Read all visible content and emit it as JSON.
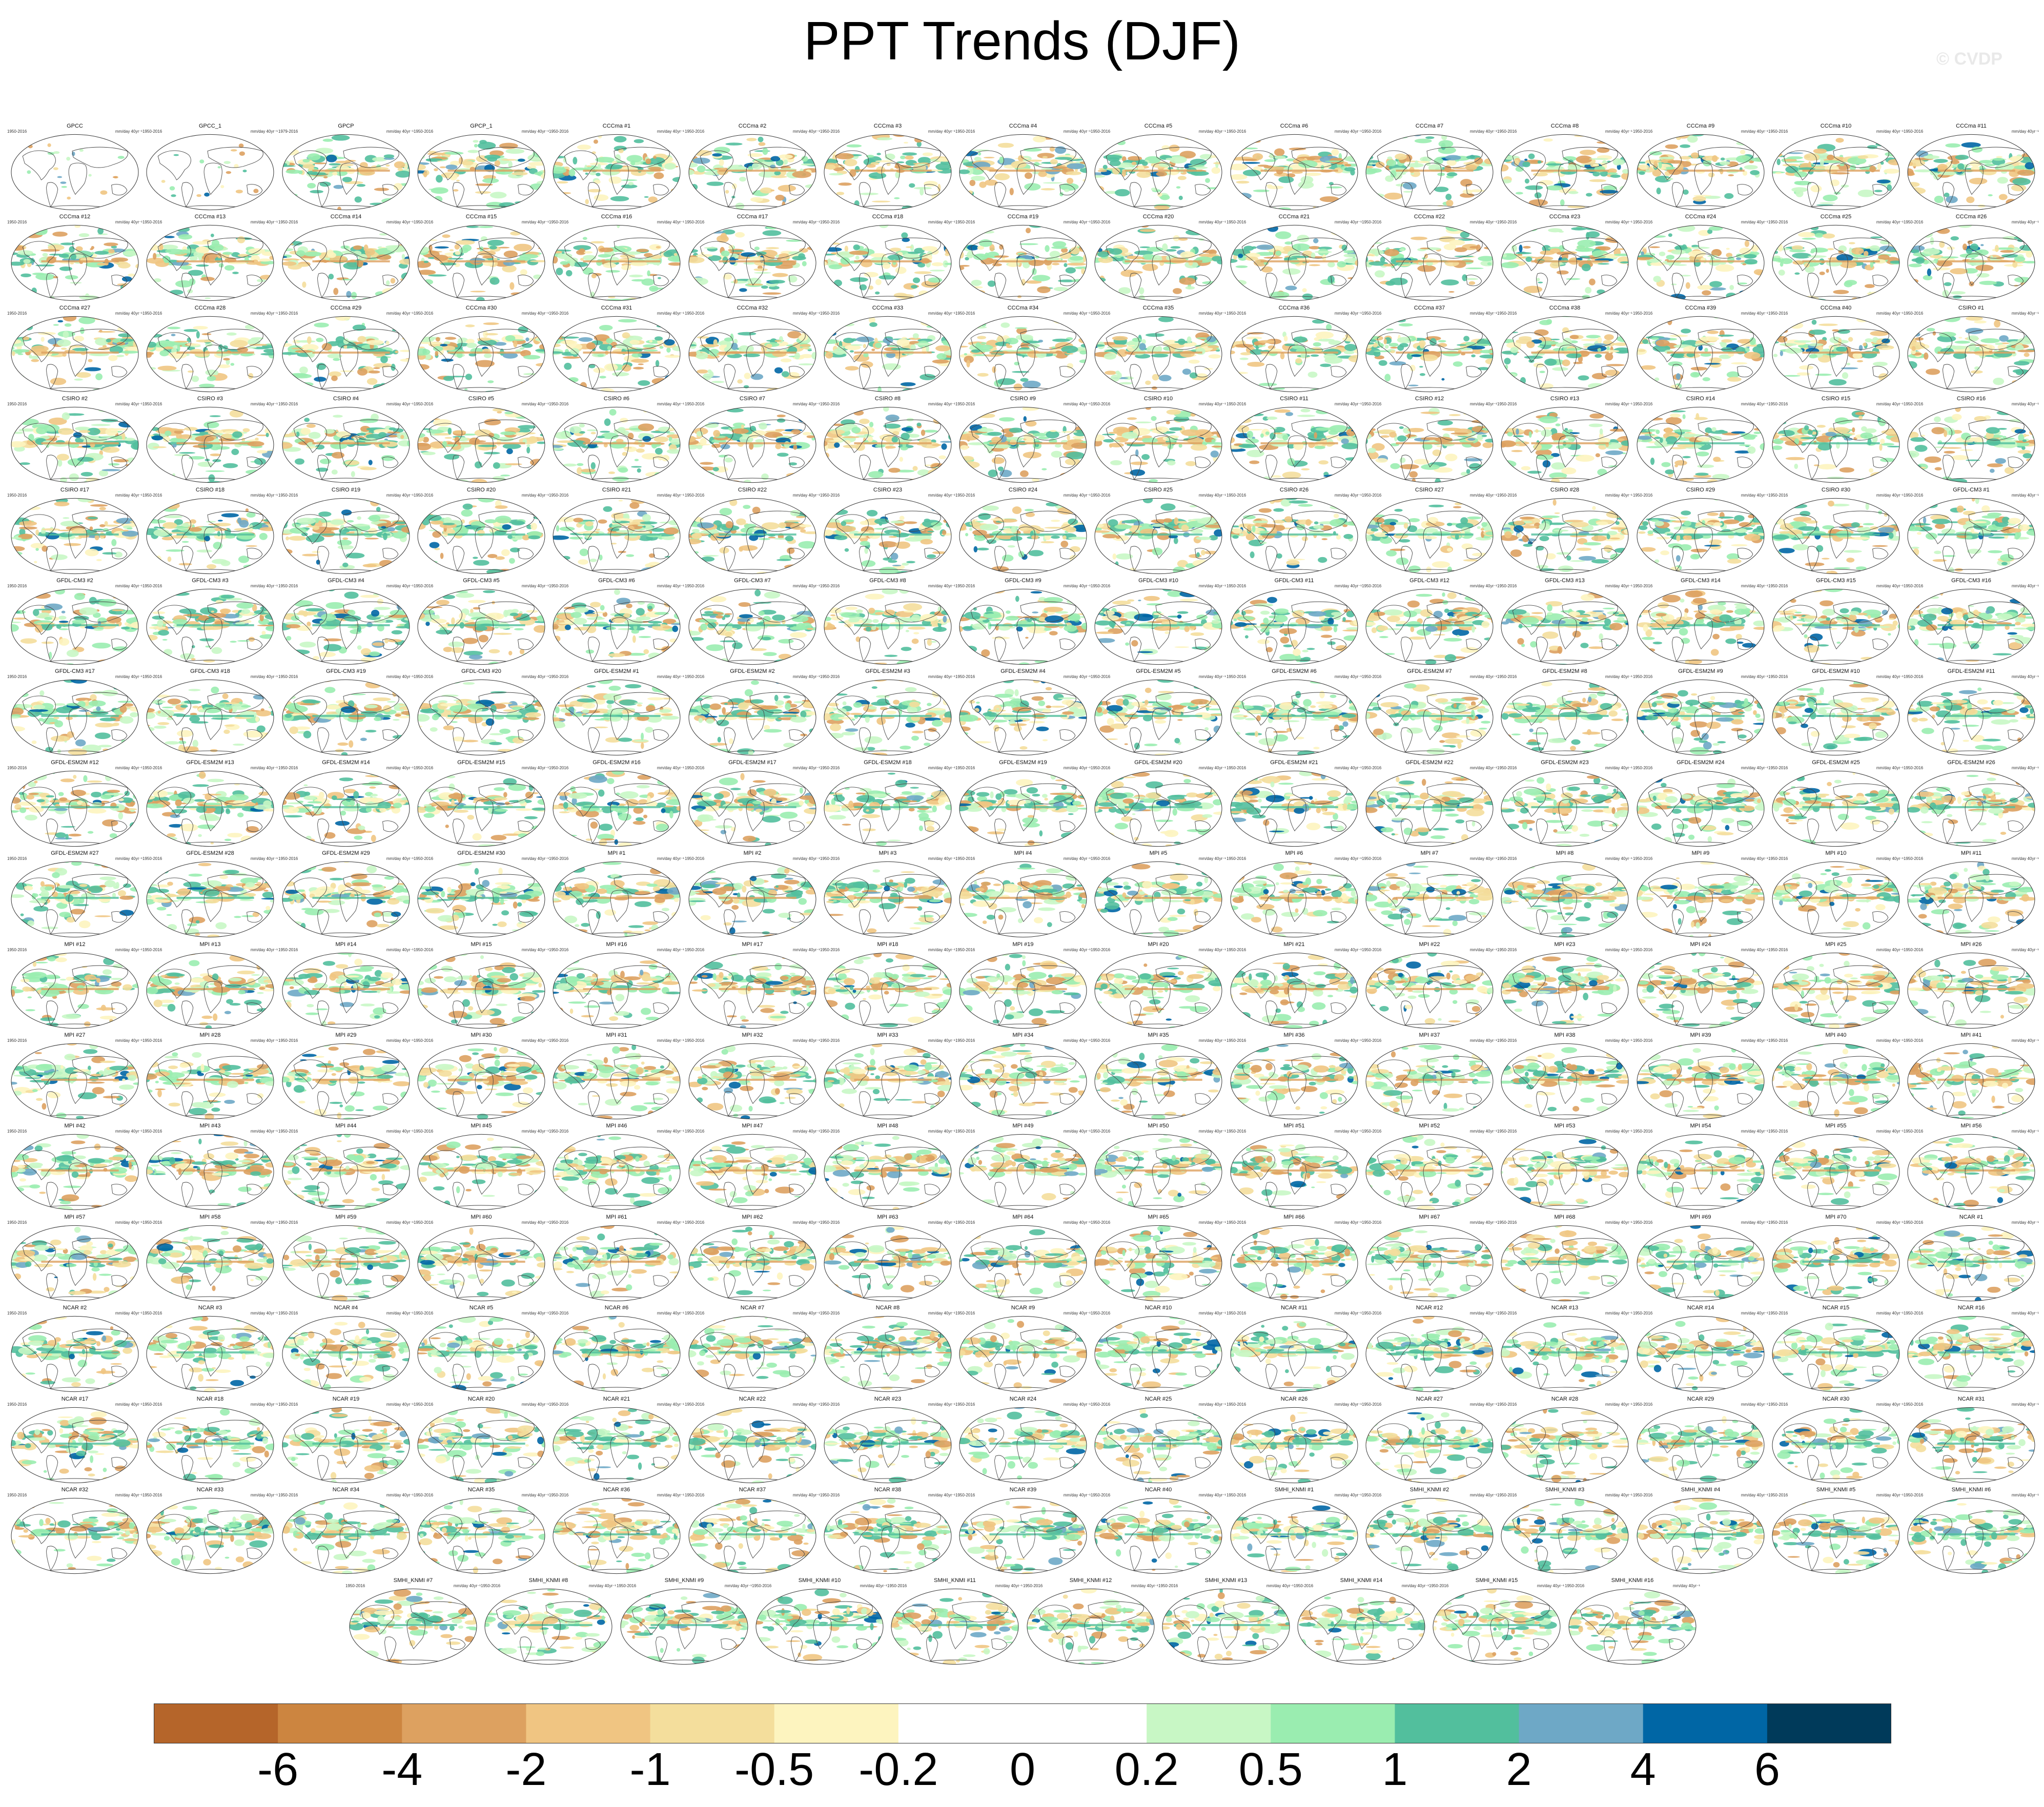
{
  "title": "PPT Trends (DJF)",
  "watermark": "© CVDP",
  "chart_data": {
    "type": "heatmap",
    "title": "PPT Trends (DJF)",
    "description_kind": "small-multiple global map panels of seasonal precipitation trend",
    "units": "mm/day 40yr⁻¹",
    "panels": [
      {
        "name": "GPCC",
        "period": "1950-2016"
      },
      {
        "name": "GPCC_1",
        "period": "1950-2016"
      },
      {
        "name": "GPCP",
        "period": "1979-2016"
      },
      {
        "name": "GPCP_1",
        "period": "1950-2016"
      },
      {
        "name": "CCCma #1",
        "period": "1950-2016"
      },
      {
        "name": "CCCma #2",
        "period": "1950-2016"
      },
      {
        "name": "CCCma #3",
        "period": "1950-2016"
      },
      {
        "name": "CCCma #4",
        "period": "1950-2016"
      },
      {
        "name": "CCCma #5",
        "period": "1950-2016"
      },
      {
        "name": "CCCma #6",
        "period": "1950-2016"
      },
      {
        "name": "CCCma #7",
        "period": "1950-2016"
      },
      {
        "name": "CCCma #8",
        "period": "1950-2016"
      },
      {
        "name": "CCCma #9",
        "period": "1950-2016"
      },
      {
        "name": "CCCma #10",
        "period": "1950-2016"
      },
      {
        "name": "CCCma #11",
        "period": "1950-2016"
      },
      {
        "name": "CCCma #12",
        "period": "1950-2016"
      },
      {
        "name": "CCCma #13",
        "period": "1950-2016"
      },
      {
        "name": "CCCma #14",
        "period": "1950-2016"
      },
      {
        "name": "CCCma #15",
        "period": "1950-2016"
      },
      {
        "name": "CCCma #16",
        "period": "1950-2016"
      },
      {
        "name": "CCCma #17",
        "period": "1950-2016"
      },
      {
        "name": "CCCma #18",
        "period": "1950-2016"
      },
      {
        "name": "CCCma #19",
        "period": "1950-2016"
      },
      {
        "name": "CCCma #20",
        "period": "1950-2016"
      },
      {
        "name": "CCCma #21",
        "period": "1950-2016"
      },
      {
        "name": "CCCma #22",
        "period": "1950-2016"
      },
      {
        "name": "CCCma #23",
        "period": "1950-2016"
      },
      {
        "name": "CCCma #24",
        "period": "1950-2016"
      },
      {
        "name": "CCCma #25",
        "period": "1950-2016"
      },
      {
        "name": "CCCma #26",
        "period": "1950-2016"
      },
      {
        "name": "CCCma #27",
        "period": "1950-2016"
      },
      {
        "name": "CCCma #28",
        "period": "1950-2016"
      },
      {
        "name": "CCCma #29",
        "period": "1950-2016"
      },
      {
        "name": "CCCma #30",
        "period": "1950-2016"
      },
      {
        "name": "CCCma #31",
        "period": "1950-2016"
      },
      {
        "name": "CCCma #32",
        "period": "1950-2016"
      },
      {
        "name": "CCCma #33",
        "period": "1950-2016"
      },
      {
        "name": "CCCma #34",
        "period": "1950-2016"
      },
      {
        "name": "CCCma #35",
        "period": "1950-2016"
      },
      {
        "name": "CCCma #36",
        "period": "1950-2016"
      },
      {
        "name": "CCCma #37",
        "period": "1950-2016"
      },
      {
        "name": "CCCma #38",
        "period": "1950-2016"
      },
      {
        "name": "CCCma #39",
        "period": "1950-2016"
      },
      {
        "name": "CCCma #40",
        "period": "1950-2016"
      },
      {
        "name": "CSIRO #1",
        "period": "1950-2016"
      },
      {
        "name": "CSIRO #2",
        "period": "1950-2016"
      },
      {
        "name": "CSIRO #3",
        "period": "1950-2016"
      },
      {
        "name": "CSIRO #4",
        "period": "1950-2016"
      },
      {
        "name": "CSIRO #5",
        "period": "1950-2016"
      },
      {
        "name": "CSIRO #6",
        "period": "1950-2016"
      },
      {
        "name": "CSIRO #7",
        "period": "1950-2016"
      },
      {
        "name": "CSIRO #8",
        "period": "1950-2016"
      },
      {
        "name": "CSIRO #9",
        "period": "1950-2016"
      },
      {
        "name": "CSIRO #10",
        "period": "1950-2016"
      },
      {
        "name": "CSIRO #11",
        "period": "1950-2016"
      },
      {
        "name": "CSIRO #12",
        "period": "1950-2016"
      },
      {
        "name": "CSIRO #13",
        "period": "1950-2016"
      },
      {
        "name": "CSIRO #14",
        "period": "1950-2016"
      },
      {
        "name": "CSIRO #15",
        "period": "1950-2016"
      },
      {
        "name": "CSIRO #16",
        "period": "1950-2016"
      },
      {
        "name": "CSIRO #17",
        "period": "1950-2016"
      },
      {
        "name": "CSIRO #18",
        "period": "1950-2016"
      },
      {
        "name": "CSIRO #19",
        "period": "1950-2016"
      },
      {
        "name": "CSIRO #20",
        "period": "1950-2016"
      },
      {
        "name": "CSIRO #21",
        "period": "1950-2016"
      },
      {
        "name": "CSIRO #22",
        "period": "1950-2016"
      },
      {
        "name": "CSIRO #23",
        "period": "1950-2016"
      },
      {
        "name": "CSIRO #24",
        "period": "1950-2016"
      },
      {
        "name": "CSIRO #25",
        "period": "1950-2016"
      },
      {
        "name": "CSIRO #26",
        "period": "1950-2016"
      },
      {
        "name": "CSIRO #27",
        "period": "1950-2016"
      },
      {
        "name": "CSIRO #28",
        "period": "1950-2016"
      },
      {
        "name": "CSIRO #29",
        "period": "1950-2016"
      },
      {
        "name": "CSIRO #30",
        "period": "1950-2016"
      },
      {
        "name": "GFDL-CM3 #1",
        "period": "1950-2016"
      },
      {
        "name": "GFDL-CM3 #2",
        "period": "1950-2016"
      },
      {
        "name": "GFDL-CM3 #3",
        "period": "1950-2016"
      },
      {
        "name": "GFDL-CM3 #4",
        "period": "1950-2016"
      },
      {
        "name": "GFDL-CM3 #5",
        "period": "1950-2016"
      },
      {
        "name": "GFDL-CM3 #6",
        "period": "1950-2016"
      },
      {
        "name": "GFDL-CM3 #7",
        "period": "1950-2016"
      },
      {
        "name": "GFDL-CM3 #8",
        "period": "1950-2016"
      },
      {
        "name": "GFDL-CM3 #9",
        "period": "1950-2016"
      },
      {
        "name": "GFDL-CM3 #10",
        "period": "1950-2016"
      },
      {
        "name": "GFDL-CM3 #11",
        "period": "1950-2016"
      },
      {
        "name": "GFDL-CM3 #12",
        "period": "1950-2016"
      },
      {
        "name": "GFDL-CM3 #13",
        "period": "1950-2016"
      },
      {
        "name": "GFDL-CM3 #14",
        "period": "1950-2016"
      },
      {
        "name": "GFDL-CM3 #15",
        "period": "1950-2016"
      },
      {
        "name": "GFDL-CM3 #16",
        "period": "1950-2016"
      },
      {
        "name": "GFDL-CM3 #17",
        "period": "1950-2016"
      },
      {
        "name": "GFDL-CM3 #18",
        "period": "1950-2016"
      },
      {
        "name": "GFDL-CM3 #19",
        "period": "1950-2016"
      },
      {
        "name": "GFDL-CM3 #20",
        "period": "1950-2016"
      },
      {
        "name": "GFDL-ESM2M #1",
        "period": "1950-2016"
      },
      {
        "name": "GFDL-ESM2M #2",
        "period": "1950-2016"
      },
      {
        "name": "GFDL-ESM2M #3",
        "period": "1950-2016"
      },
      {
        "name": "GFDL-ESM2M #4",
        "period": "1950-2016"
      },
      {
        "name": "GFDL-ESM2M #5",
        "period": "1950-2016"
      },
      {
        "name": "GFDL-ESM2M #6",
        "period": "1950-2016"
      },
      {
        "name": "GFDL-ESM2M #7",
        "period": "1950-2016"
      },
      {
        "name": "GFDL-ESM2M #8",
        "period": "1950-2016"
      },
      {
        "name": "GFDL-ESM2M #9",
        "period": "1950-2016"
      },
      {
        "name": "GFDL-ESM2M #10",
        "period": "1950-2016"
      },
      {
        "name": "GFDL-ESM2M #11",
        "period": "1950-2016"
      },
      {
        "name": "GFDL-ESM2M #12",
        "period": "1950-2016"
      },
      {
        "name": "GFDL-ESM2M #13",
        "period": "1950-2016"
      },
      {
        "name": "GFDL-ESM2M #14",
        "period": "1950-2016"
      },
      {
        "name": "GFDL-ESM2M #15",
        "period": "1950-2016"
      },
      {
        "name": "GFDL-ESM2M #16",
        "period": "1950-2016"
      },
      {
        "name": "GFDL-ESM2M #17",
        "period": "1950-2016"
      },
      {
        "name": "GFDL-ESM2M #18",
        "period": "1950-2016"
      },
      {
        "name": "GFDL-ESM2M #19",
        "period": "1950-2016"
      },
      {
        "name": "GFDL-ESM2M #20",
        "period": "1950-2016"
      },
      {
        "name": "GFDL-ESM2M #21",
        "period": "1950-2016"
      },
      {
        "name": "GFDL-ESM2M #22",
        "period": "1950-2016"
      },
      {
        "name": "GFDL-ESM2M #23",
        "period": "1950-2016"
      },
      {
        "name": "GFDL-ESM2M #24",
        "period": "1950-2016"
      },
      {
        "name": "GFDL-ESM2M #25",
        "period": "1950-2016"
      },
      {
        "name": "GFDL-ESM2M #26",
        "period": "1950-2016"
      },
      {
        "name": "GFDL-ESM2M #27",
        "period": "1950-2016"
      },
      {
        "name": "GFDL-ESM2M #28",
        "period": "1950-2016"
      },
      {
        "name": "GFDL-ESM2M #29",
        "period": "1950-2016"
      },
      {
        "name": "GFDL-ESM2M #30",
        "period": "1950-2016"
      },
      {
        "name": "MPI #1",
        "period": "1950-2016"
      },
      {
        "name": "MPI #2",
        "period": "1950-2016"
      },
      {
        "name": "MPI #3",
        "period": "1950-2016"
      },
      {
        "name": "MPI #4",
        "period": "1950-2016"
      },
      {
        "name": "MPI #5",
        "period": "1950-2016"
      },
      {
        "name": "MPI #6",
        "period": "1950-2016"
      },
      {
        "name": "MPI #7",
        "period": "1950-2016"
      },
      {
        "name": "MPI #8",
        "period": "1950-2016"
      },
      {
        "name": "MPI #9",
        "period": "1950-2016"
      },
      {
        "name": "MPI #10",
        "period": "1950-2016"
      },
      {
        "name": "MPI #11",
        "period": "1950-2016"
      },
      {
        "name": "MPI #12",
        "period": "1950-2016"
      },
      {
        "name": "MPI #13",
        "period": "1950-2016"
      },
      {
        "name": "MPI #14",
        "period": "1950-2016"
      },
      {
        "name": "MPI #15",
        "period": "1950-2016"
      },
      {
        "name": "MPI #16",
        "period": "1950-2016"
      },
      {
        "name": "MPI #17",
        "period": "1950-2016"
      },
      {
        "name": "MPI #18",
        "period": "1950-2016"
      },
      {
        "name": "MPI #19",
        "period": "1950-2016"
      },
      {
        "name": "MPI #20",
        "period": "1950-2016"
      },
      {
        "name": "MPI #21",
        "period": "1950-2016"
      },
      {
        "name": "MPI #22",
        "period": "1950-2016"
      },
      {
        "name": "MPI #23",
        "period": "1950-2016"
      },
      {
        "name": "MPI #24",
        "period": "1950-2016"
      },
      {
        "name": "MPI #25",
        "period": "1950-2016"
      },
      {
        "name": "MPI #26",
        "period": "1950-2016"
      },
      {
        "name": "MPI #27",
        "period": "1950-2016"
      },
      {
        "name": "MPI #28",
        "period": "1950-2016"
      },
      {
        "name": "MPI #29",
        "period": "1950-2016"
      },
      {
        "name": "MPI #30",
        "period": "1950-2016"
      },
      {
        "name": "MPI #31",
        "period": "1950-2016"
      },
      {
        "name": "MPI #32",
        "period": "1950-2016"
      },
      {
        "name": "MPI #33",
        "period": "1950-2016"
      },
      {
        "name": "MPI #34",
        "period": "1950-2016"
      },
      {
        "name": "MPI #35",
        "period": "1950-2016"
      },
      {
        "name": "MPI #36",
        "period": "1950-2016"
      },
      {
        "name": "MPI #37",
        "period": "1950-2016"
      },
      {
        "name": "MPI #38",
        "period": "1950-2016"
      },
      {
        "name": "MPI #39",
        "period": "1950-2016"
      },
      {
        "name": "MPI #40",
        "period": "1950-2016"
      },
      {
        "name": "MPI #41",
        "period": "1950-2016"
      },
      {
        "name": "MPI #42",
        "period": "1950-2016"
      },
      {
        "name": "MPI #43",
        "period": "1950-2016"
      },
      {
        "name": "MPI #44",
        "period": "1950-2016"
      },
      {
        "name": "MPI #45",
        "period": "1950-2016"
      },
      {
        "name": "MPI #46",
        "period": "1950-2016"
      },
      {
        "name": "MPI #47",
        "period": "1950-2016"
      },
      {
        "name": "MPI #48",
        "period": "1950-2016"
      },
      {
        "name": "MPI #49",
        "period": "1950-2016"
      },
      {
        "name": "MPI #50",
        "period": "1950-2016"
      },
      {
        "name": "MPI #51",
        "period": "1950-2016"
      },
      {
        "name": "MPI #52",
        "period": "1950-2016"
      },
      {
        "name": "MPI #53",
        "period": "1950-2016"
      },
      {
        "name": "MPI #54",
        "period": "1950-2016"
      },
      {
        "name": "MPI #55",
        "period": "1950-2016"
      },
      {
        "name": "MPI #56",
        "period": "1950-2016"
      },
      {
        "name": "MPI #57",
        "period": "1950-2016"
      },
      {
        "name": "MPI #58",
        "period": "1950-2016"
      },
      {
        "name": "MPI #59",
        "period": "1950-2016"
      },
      {
        "name": "MPI #60",
        "period": "1950-2016"
      },
      {
        "name": "MPI #61",
        "period": "1950-2016"
      },
      {
        "name": "MPI #62",
        "period": "1950-2016"
      },
      {
        "name": "MPI #63",
        "period": "1950-2016"
      },
      {
        "name": "MPI #64",
        "period": "1950-2016"
      },
      {
        "name": "MPI #65",
        "period": "1950-2016"
      },
      {
        "name": "MPI #66",
        "period": "1950-2016"
      },
      {
        "name": "MPI #67",
        "period": "1950-2016"
      },
      {
        "name": "MPI #68",
        "period": "1950-2016"
      },
      {
        "name": "MPI #69",
        "period": "1950-2016"
      },
      {
        "name": "MPI #70",
        "period": "1950-2016"
      },
      {
        "name": "NCAR #1",
        "period": "1950-2016"
      },
      {
        "name": "NCAR #2",
        "period": "1950-2016"
      },
      {
        "name": "NCAR #3",
        "period": "1950-2016"
      },
      {
        "name": "NCAR #4",
        "period": "1950-2016"
      },
      {
        "name": "NCAR #5",
        "period": "1950-2016"
      },
      {
        "name": "NCAR #6",
        "period": "1950-2016"
      },
      {
        "name": "NCAR #7",
        "period": "1950-2016"
      },
      {
        "name": "NCAR #8",
        "period": "1950-2016"
      },
      {
        "name": "NCAR #9",
        "period": "1950-2016"
      },
      {
        "name": "NCAR #10",
        "period": "1950-2016"
      },
      {
        "name": "NCAR #11",
        "period": "1950-2016"
      },
      {
        "name": "NCAR #12",
        "period": "1950-2016"
      },
      {
        "name": "NCAR #13",
        "period": "1950-2016"
      },
      {
        "name": "NCAR #14",
        "period": "1950-2016"
      },
      {
        "name": "NCAR #15",
        "period": "1950-2016"
      },
      {
        "name": "NCAR #16",
        "period": "1950-2016"
      },
      {
        "name": "NCAR #17",
        "period": "1950-2016"
      },
      {
        "name": "NCAR #18",
        "period": "1950-2016"
      },
      {
        "name": "NCAR #19",
        "period": "1950-2016"
      },
      {
        "name": "NCAR #20",
        "period": "1950-2016"
      },
      {
        "name": "NCAR #21",
        "period": "1950-2016"
      },
      {
        "name": "NCAR #22",
        "period": "1950-2016"
      },
      {
        "name": "NCAR #23",
        "period": "1950-2016"
      },
      {
        "name": "NCAR #24",
        "period": "1950-2016"
      },
      {
        "name": "NCAR #25",
        "period": "1950-2016"
      },
      {
        "name": "NCAR #26",
        "period": "1950-2016"
      },
      {
        "name": "NCAR #27",
        "period": "1950-2016"
      },
      {
        "name": "NCAR #28",
        "period": "1950-2016"
      },
      {
        "name": "NCAR #29",
        "period": "1950-2016"
      },
      {
        "name": "NCAR #30",
        "period": "1950-2016"
      },
      {
        "name": "NCAR #31",
        "period": "1950-2016"
      },
      {
        "name": "NCAR #32",
        "period": "1950-2016"
      },
      {
        "name": "NCAR #33",
        "period": "1950-2016"
      },
      {
        "name": "NCAR #34",
        "period": "1950-2016"
      },
      {
        "name": "NCAR #35",
        "period": "1950-2016"
      },
      {
        "name": "NCAR #36",
        "period": "1950-2016"
      },
      {
        "name": "NCAR #37",
        "period": "1950-2016"
      },
      {
        "name": "NCAR #38",
        "period": "1950-2016"
      },
      {
        "name": "NCAR #39",
        "period": "1950-2016"
      },
      {
        "name": "NCAR #40",
        "period": "1950-2016"
      },
      {
        "name": "SMHI_KNMI #1",
        "period": "1950-2016"
      },
      {
        "name": "SMHI_KNMI #2",
        "period": "1950-2016"
      },
      {
        "name": "SMHI_KNMI #3",
        "period": "1950-2016"
      },
      {
        "name": "SMHI_KNMI #4",
        "period": "1950-2016"
      },
      {
        "name": "SMHI_KNMI #5",
        "period": "1950-2016"
      },
      {
        "name": "SMHI_KNMI #6",
        "period": "1950-2016"
      },
      {
        "name": "SMHI_KNMI #7",
        "period": "1950-2016"
      },
      {
        "name": "SMHI_KNMI #8",
        "period": "1950-2016"
      },
      {
        "name": "SMHI_KNMI #9",
        "period": "1950-2016"
      },
      {
        "name": "SMHI_KNMI #10",
        "period": "1950-2016"
      },
      {
        "name": "SMHI_KNMI #11",
        "period": "1950-2016"
      },
      {
        "name": "SMHI_KNMI #12",
        "period": "1950-2016"
      },
      {
        "name": "SMHI_KNMI #13",
        "period": "1950-2016"
      },
      {
        "name": "SMHI_KNMI #14",
        "period": "1950-2016"
      },
      {
        "name": "SMHI_KNMI #15",
        "period": "1950-2016"
      },
      {
        "name": "SMHI_KNMI #16",
        "period": "1950-2016"
      }
    ],
    "colorbar": {
      "labels": [
        "-6",
        "-4",
        "-2",
        "-1",
        "-0.5",
        "-0.2",
        "0",
        "0.2",
        "0.5",
        "1",
        "2",
        "4",
        "6"
      ],
      "colors": [
        "#b5652a",
        "#cc8540",
        "#dda160",
        "#f0c582",
        "#f4de9c",
        "#fdf4bf",
        "#ffffff",
        "#ffffff",
        "#c8f7c5",
        "#9aedb0",
        "#52bf9d",
        "#6ea8c6",
        "#0066a5",
        "#003a5a"
      ]
    }
  }
}
